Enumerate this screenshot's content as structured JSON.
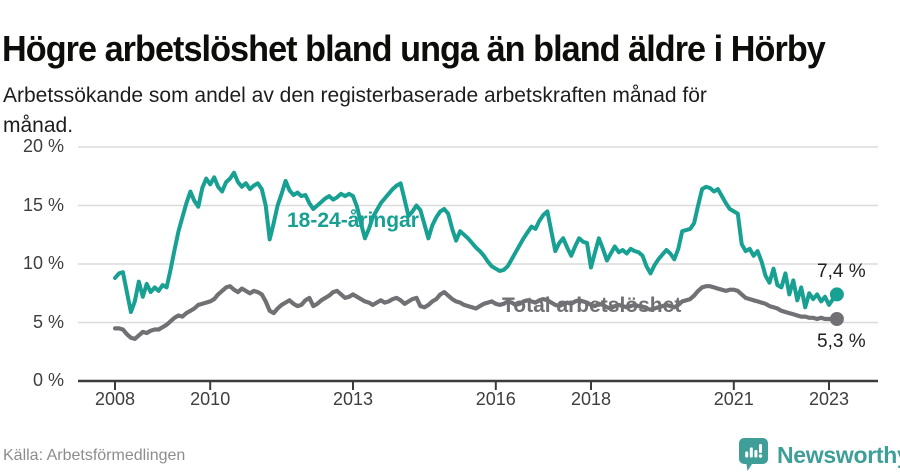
{
  "header": {
    "title": "Högre arbetslöshet bland unga än bland äldre i Hörby",
    "subtitle": "Arbetssökande som andel av den registerbaserade arbetskraften månad för månad."
  },
  "footer": {
    "source": "Källa: Arbetsförmedlingen",
    "brand_name": "Newsworthy"
  },
  "colors": {
    "youth": "#18a092",
    "total": "#717175",
    "grid": "#dbdbdb",
    "axis": "#3c3c3c",
    "axis_text": "#3e3e3e",
    "annotation_text": "#222222",
    "brand_teal": "#3f9f98"
  },
  "chart_data": {
    "type": "line",
    "title": "Högre arbetslöshet bland unga än bland äldre i Hörby",
    "subtitle": "Arbetssökande som andel av den registerbaserade arbetskraften månad för månad.",
    "x_start_year": 2008,
    "x_interval": "monthly",
    "x_end": "2023-03",
    "x_tick_values": [
      2008,
      2010,
      2013,
      2016,
      2018,
      2021,
      2023
    ],
    "x_tick_labels": [
      "2008",
      "2010",
      "2013",
      "2016",
      "2018",
      "2021",
      "2023"
    ],
    "y_tick_values": [
      0,
      5,
      10,
      15,
      20
    ],
    "y_tick_labels": [
      "0 %",
      "5 %",
      "10 %",
      "15 %",
      "20 %"
    ],
    "ylim": [
      0,
      20
    ],
    "grid": true,
    "legend_position": "inline-labels",
    "series": [
      {
        "name": "18-24-åringar",
        "color": "#18a092",
        "end_label": "7,4 %",
        "end_value": 7.4,
        "values": [
          8.8,
          9.2,
          9.3,
          7.6,
          5.9,
          6.8,
          8.5,
          7.2,
          8.3,
          7.6,
          8.0,
          7.7,
          8.2,
          8.0,
          9.5,
          11.2,
          12.8,
          14.0,
          15.2,
          16.2,
          15.4,
          14.9,
          16.5,
          17.3,
          16.8,
          17.4,
          16.6,
          16.2,
          17.0,
          17.3,
          17.8,
          17.0,
          16.6,
          16.9,
          16.4,
          16.7,
          16.9,
          16.4,
          15.0,
          12.1,
          13.5,
          15.0,
          16.0,
          17.1,
          16.3,
          15.9,
          16.1,
          15.8,
          15.9,
          15.2,
          14.7,
          15.0,
          15.3,
          15.6,
          15.8,
          15.5,
          15.7,
          16.0,
          15.8,
          16.0,
          15.8,
          14.9,
          13.5,
          12.2,
          13.0,
          14.0,
          14.6,
          15.2,
          15.6,
          16.0,
          16.4,
          16.7,
          16.9,
          15.5,
          14.1,
          14.5,
          15.0,
          14.6,
          13.4,
          12.2,
          13.3,
          14.0,
          14.5,
          14.7,
          14.3,
          13.0,
          12.0,
          12.8,
          12.5,
          12.2,
          11.8,
          11.4,
          11.1,
          10.7,
          10.2,
          9.8,
          9.6,
          9.4,
          9.5,
          9.8,
          10.4,
          11.0,
          11.6,
          12.2,
          12.7,
          13.2,
          13.0,
          13.7,
          14.2,
          14.5,
          12.8,
          11.1,
          11.8,
          12.2,
          11.4,
          10.7,
          11.5,
          12.2,
          11.9,
          11.8,
          9.7,
          11.0,
          12.2,
          11.3,
          10.3,
          10.9,
          11.5,
          11.0,
          11.2,
          10.9,
          11.3,
          11.1,
          11.0,
          10.7,
          9.8,
          9.2,
          9.9,
          10.4,
          10.8,
          11.2,
          10.9,
          10.4,
          11.3,
          12.8,
          12.9,
          13.0,
          13.5,
          15.0,
          16.4,
          16.6,
          16.5,
          16.2,
          16.4,
          15.8,
          15.2,
          14.7,
          14.5,
          14.3,
          11.7,
          11.1,
          11.3,
          10.7,
          11.1,
          10.2,
          9.0,
          8.4,
          9.6,
          8.2,
          8.0,
          9.2,
          7.4,
          8.6,
          6.9,
          8.0,
          6.3,
          7.5,
          7.0,
          7.4,
          6.8,
          7.2,
          6.5,
          7.0,
          7.4
        ]
      },
      {
        "name": "Total arbetslöshet",
        "color": "#717175",
        "end_label": "5,3 %",
        "end_value": 5.3,
        "values": [
          4.5,
          4.5,
          4.4,
          4.0,
          3.7,
          3.6,
          3.9,
          4.2,
          4.1,
          4.3,
          4.4,
          4.4,
          4.6,
          4.8,
          5.1,
          5.4,
          5.6,
          5.5,
          5.8,
          6.0,
          6.2,
          6.5,
          6.6,
          6.7,
          6.8,
          7.0,
          7.4,
          7.7,
          8.0,
          8.1,
          7.8,
          7.6,
          7.9,
          7.7,
          7.5,
          7.7,
          7.6,
          7.4,
          6.8,
          6.0,
          5.8,
          6.2,
          6.5,
          6.7,
          6.9,
          6.6,
          6.4,
          6.5,
          6.9,
          7.1,
          6.4,
          6.6,
          6.9,
          7.1,
          7.3,
          7.6,
          7.7,
          7.4,
          7.1,
          7.2,
          7.4,
          7.2,
          7.0,
          6.8,
          6.7,
          6.5,
          6.7,
          6.9,
          6.7,
          6.8,
          7.0,
          7.1,
          6.9,
          6.6,
          6.8,
          7.0,
          7.1,
          6.4,
          6.3,
          6.5,
          6.8,
          7.0,
          7.4,
          7.6,
          7.3,
          7.0,
          6.8,
          6.7,
          6.5,
          6.4,
          6.3,
          6.2,
          6.4,
          6.6,
          6.7,
          6.8,
          6.6,
          6.5,
          6.6,
          6.8,
          6.7,
          6.5,
          6.6,
          6.8,
          6.9,
          6.8,
          6.7,
          6.9,
          7.0,
          6.9,
          6.7,
          6.5,
          6.4,
          6.6,
          6.7,
          6.6,
          6.8,
          6.9,
          6.8,
          6.7,
          6.5,
          6.4,
          6.6,
          6.5,
          6.3,
          6.2,
          6.4,
          6.5,
          6.4,
          6.3,
          6.4,
          6.5,
          6.4,
          6.3,
          6.2,
          6.1,
          6.2,
          6.3,
          6.4,
          6.5,
          6.4,
          6.3,
          6.5,
          6.8,
          6.9,
          7.0,
          7.3,
          7.7,
          8.0,
          8.1,
          8.1,
          8.0,
          7.9,
          7.8,
          7.7,
          7.8,
          7.8,
          7.7,
          7.4,
          7.1,
          7.0,
          6.9,
          6.8,
          6.7,
          6.6,
          6.4,
          6.3,
          6.2,
          6.0,
          5.9,
          5.8,
          5.7,
          5.6,
          5.5,
          5.5,
          5.4,
          5.4,
          5.3,
          5.4,
          5.3,
          5.3,
          5.3,
          5.3
        ]
      }
    ]
  }
}
